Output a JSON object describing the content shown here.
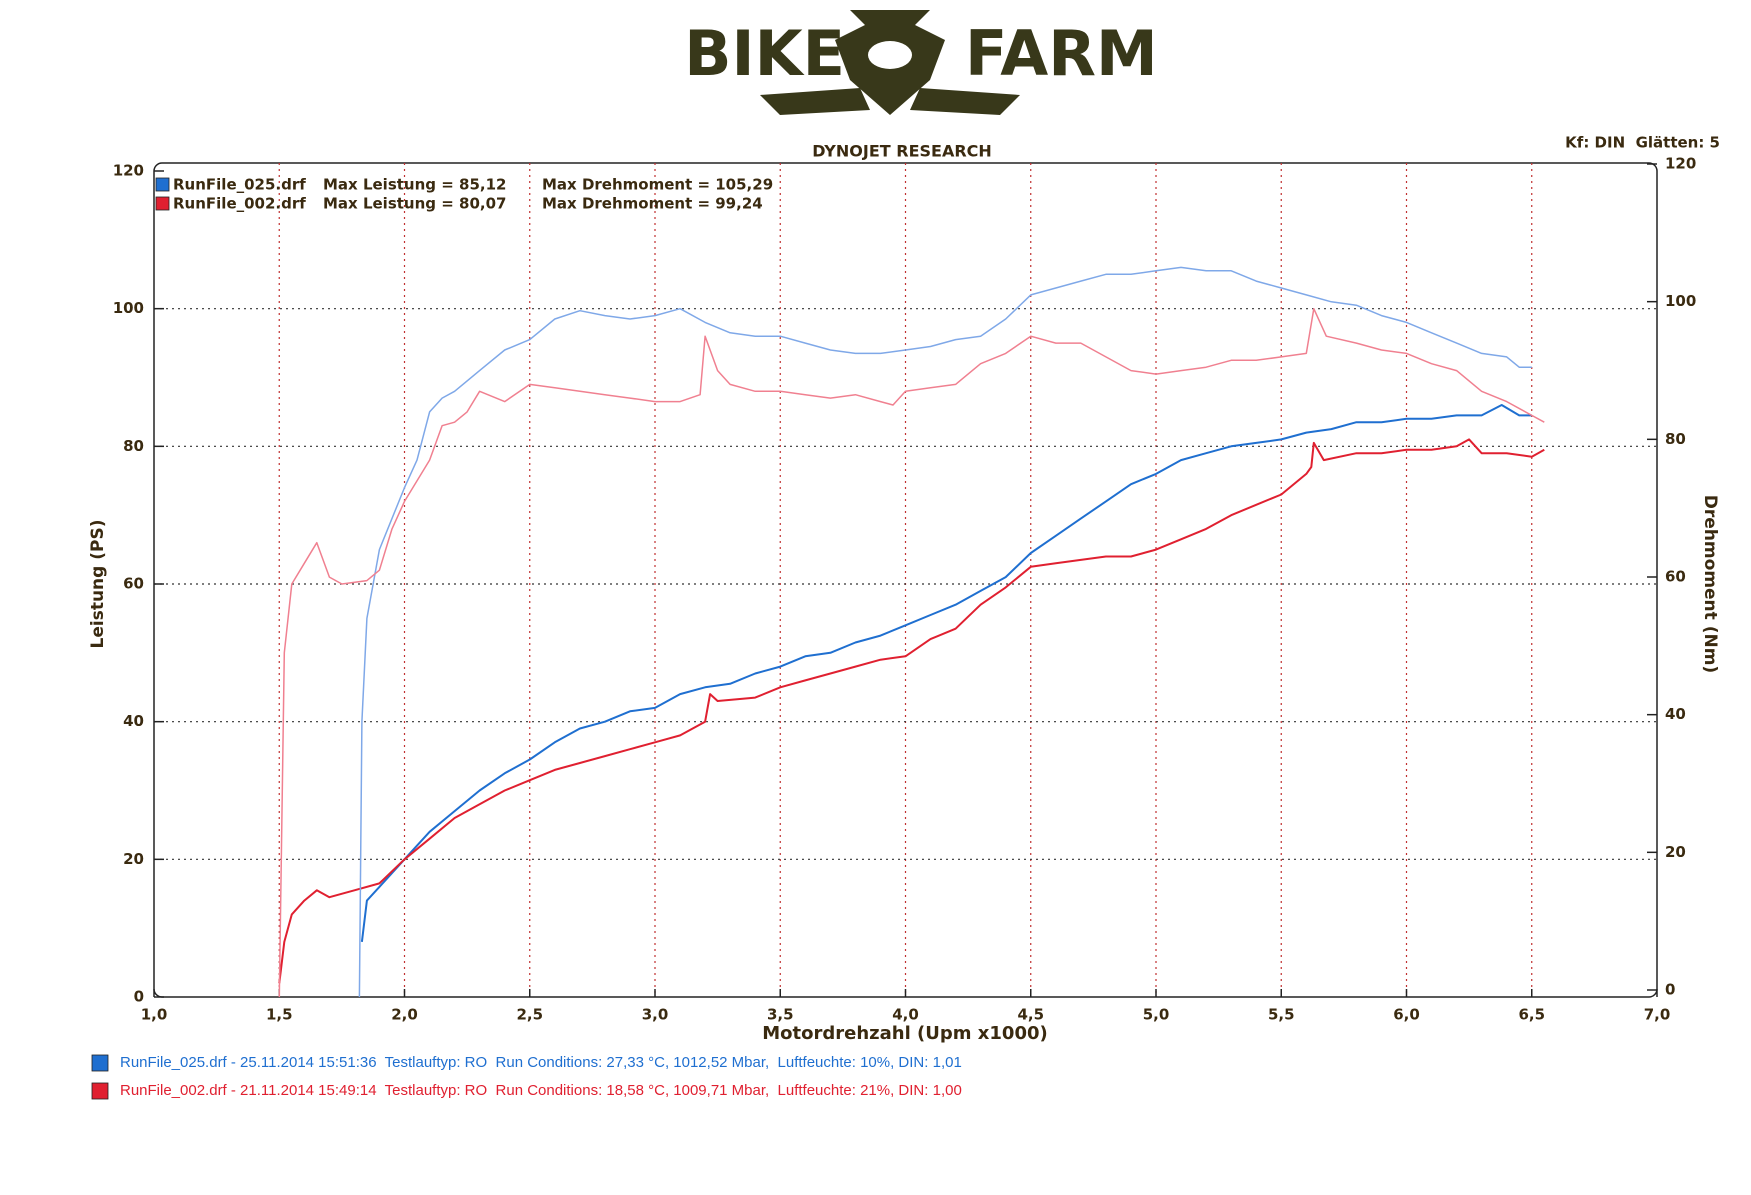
{
  "logo": {
    "left": "BIKE",
    "right": "FARM"
  },
  "chart_data": {
    "type": "line",
    "title": "DYNOJET RESEARCH",
    "settings_label": "Kf: DIN  Glätten: 5",
    "xlabel": "Motordrehzahl (Upm x1000)",
    "ylabel": "Leistung (PS)",
    "y2label": "Drehmoment (Nm)",
    "xlim": [
      1,
      7
    ],
    "xticks": [
      {
        "value": 1,
        "label": "1,0"
      },
      {
        "value": 1.5,
        "label": "1,5"
      },
      {
        "value": 2,
        "label": "2,0"
      },
      {
        "value": 2.5,
        "label": "2,5"
      },
      {
        "value": 3,
        "label": "3,0"
      },
      {
        "value": 3.5,
        "label": "3,5"
      },
      {
        "value": 4,
        "label": "4,0"
      },
      {
        "value": 4.5,
        "label": "4,5"
      },
      {
        "value": 5,
        "label": "5,0"
      },
      {
        "value": 5.5,
        "label": "5,5"
      },
      {
        "value": 6,
        "label": "6,0"
      },
      {
        "value": 6.5,
        "label": "6,5"
      },
      {
        "value": 7,
        "label": "7,0"
      }
    ],
    "ylim": [
      0,
      120
    ],
    "yticks": [
      0,
      20,
      40,
      60,
      80,
      100,
      120
    ],
    "y2lim": [
      0,
      120
    ],
    "y2ticks": [
      0,
      20,
      40,
      60,
      80,
      100,
      120
    ],
    "grid": true,
    "series": [
      {
        "name": "RunFile_025.drf",
        "stat_label": "Max Leistung = 85,12",
        "color": "#1f6fd0",
        "width": 2,
        "x": [
          1.83,
          1.85,
          1.9,
          2.0,
          2.1,
          2.2,
          2.3,
          2.4,
          2.5,
          2.6,
          2.7,
          2.8,
          2.9,
          3.0,
          3.1,
          3.2,
          3.3,
          3.4,
          3.5,
          3.6,
          3.7,
          3.8,
          3.9,
          4.0,
          4.1,
          4.2,
          4.3,
          4.4,
          4.5,
          4.6,
          4.7,
          4.8,
          4.9,
          5.0,
          5.1,
          5.2,
          5.3,
          5.4,
          5.5,
          5.6,
          5.7,
          5.8,
          5.9,
          6.0,
          6.1,
          6.2,
          6.3,
          6.38,
          6.45,
          6.5
        ],
        "values": [
          8,
          14,
          16,
          20,
          24,
          27,
          30,
          32.5,
          34.5,
          37,
          39,
          40,
          41.5,
          42,
          44,
          45,
          45.5,
          47,
          48,
          49.5,
          50,
          51.5,
          52.5,
          54,
          55.5,
          57,
          59,
          61,
          64.5,
          67,
          69.5,
          72,
          74.5,
          76,
          78,
          79,
          80,
          80.5,
          81,
          82,
          82.5,
          83.5,
          83.5,
          84,
          84,
          84.5,
          84.5,
          86,
          84.5,
          84.5
        ]
      },
      {
        "name": "RunFile_002.drf",
        "stat_label": "Max Leistung = 80,07",
        "color": "#e02030",
        "width": 2,
        "x": [
          1.5,
          1.52,
          1.55,
          1.6,
          1.65,
          1.7,
          1.8,
          1.9,
          2.0,
          2.1,
          2.2,
          2.3,
          2.4,
          2.5,
          2.6,
          2.7,
          2.8,
          2.9,
          3.0,
          3.1,
          3.2,
          3.22,
          3.25,
          3.4,
          3.5,
          3.6,
          3.7,
          3.8,
          3.9,
          4.0,
          4.1,
          4.2,
          4.3,
          4.4,
          4.5,
          4.6,
          4.7,
          4.8,
          4.9,
          5.0,
          5.1,
          5.2,
          5.3,
          5.4,
          5.5,
          5.6,
          5.62,
          5.63,
          5.67,
          5.8,
          5.9,
          6.0,
          6.1,
          6.2,
          6.25,
          6.3,
          6.4,
          6.5,
          6.55
        ],
        "values": [
          2,
          8,
          12,
          14,
          15.5,
          14.5,
          15.5,
          16.5,
          20,
          23,
          26,
          28,
          30,
          31.5,
          33,
          34,
          35,
          36,
          37,
          38,
          40,
          44,
          43,
          43.5,
          45,
          46,
          47,
          48,
          49,
          49.5,
          52,
          53.5,
          57,
          59.5,
          62.5,
          63,
          63.5,
          64,
          64,
          65,
          66.5,
          68,
          70,
          71.5,
          73,
          76,
          77,
          80.5,
          78,
          79,
          79,
          79.5,
          79.5,
          80,
          81,
          79,
          79,
          78.5,
          79.5
        ]
      },
      {
        "stat_label": "Max Drehmoment = 105,29",
        "color": "#7fa8e8",
        "width": 1.5,
        "axis": "y2",
        "x": [
          1.82,
          1.83,
          1.85,
          1.9,
          2.0,
          2.05,
          2.1,
          2.15,
          2.2,
          2.3,
          2.4,
          2.5,
          2.6,
          2.7,
          2.8,
          2.9,
          3.0,
          3.1,
          3.2,
          3.3,
          3.4,
          3.5,
          3.6,
          3.7,
          3.8,
          3.9,
          4.0,
          4.1,
          4.2,
          4.3,
          4.4,
          4.5,
          4.6,
          4.7,
          4.8,
          4.9,
          5.0,
          5.1,
          5.2,
          5.3,
          5.4,
          5.5,
          5.6,
          5.7,
          5.8,
          5.9,
          6.0,
          6.1,
          6.2,
          6.3,
          6.4,
          6.45,
          6.5
        ],
        "values": [
          0,
          40,
          55,
          65,
          74,
          78,
          85,
          87,
          88,
          91,
          94,
          95.5,
          98.5,
          99.7,
          99,
          98.5,
          99,
          100,
          98,
          96.5,
          96,
          96,
          95,
          94,
          93.5,
          93.5,
          94,
          94.5,
          95.5,
          96,
          98.5,
          102,
          103,
          104,
          105,
          105,
          105.5,
          106,
          105.5,
          105.5,
          104,
          103,
          102,
          101,
          100.5,
          99,
          98,
          96.5,
          95,
          93.5,
          93,
          91.5,
          91.5
        ]
      },
      {
        "stat_label": "Max Drehmoment = 99,24",
        "color": "#f08090",
        "width": 1.5,
        "axis": "y2",
        "x": [
          1.5,
          1.52,
          1.55,
          1.6,
          1.65,
          1.7,
          1.75,
          1.85,
          1.9,
          1.95,
          2.0,
          2.1,
          2.15,
          2.2,
          2.25,
          2.3,
          2.4,
          2.5,
          2.6,
          2.7,
          2.8,
          2.9,
          3.0,
          3.1,
          3.18,
          3.2,
          3.25,
          3.3,
          3.4,
          3.5,
          3.6,
          3.7,
          3.8,
          3.9,
          3.95,
          4.0,
          4.1,
          4.2,
          4.3,
          4.4,
          4.5,
          4.6,
          4.7,
          4.8,
          4.9,
          5.0,
          5.1,
          5.2,
          5.3,
          5.4,
          5.5,
          5.6,
          5.63,
          5.68,
          5.8,
          5.9,
          6.0,
          6.1,
          6.2,
          6.3,
          6.4,
          6.5,
          6.55
        ],
        "values": [
          0,
          50,
          60,
          63,
          66,
          61,
          60,
          60.5,
          62,
          68,
          72,
          78,
          83,
          83.5,
          85,
          88,
          86.5,
          89,
          88.5,
          88,
          87.5,
          87,
          86.5,
          86.5,
          87.5,
          96,
          91,
          89,
          88,
          88,
          87.5,
          87,
          87.5,
          86.5,
          86,
          88,
          88.5,
          89,
          92,
          93.5,
          96,
          95,
          95,
          93,
          91,
          90.5,
          91,
          91.5,
          92.5,
          92.5,
          93,
          93.5,
          100,
          96,
          95,
          94,
          93.5,
          92,
          91,
          88,
          86.5,
          84.5,
          83.5
        ]
      }
    ],
    "footer": [
      "RunFile_025.drf - 25.11.2014 15:51:36  Testlauftyp: RO  Run Conditions: 27,33 °C, 1012,52 Mbar,  Luftfeuchte: 10%, DIN: 1,01",
      "RunFile_002.drf - 21.11.2014 15:49:14  Testlauftyp: RO  Run Conditions: 18,58 °C, 1009,71 Mbar,  Luftfeuchte: 21%, DIN: 1,00"
    ]
  }
}
